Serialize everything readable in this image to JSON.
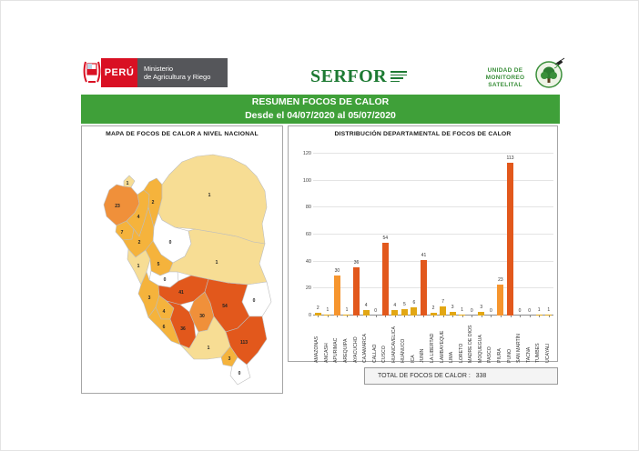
{
  "header": {
    "country_label": "PERÚ",
    "ministry_line1": "Ministerio",
    "ministry_line2": "de Agricultura y Riego",
    "serfor_logo": "SERFOR",
    "monitoring_unit_line1": "UNIDAD DE",
    "monitoring_unit_line2": "MONITOREO",
    "monitoring_unit_line3": "SATELITAL"
  },
  "title_bar": {
    "line1": "RESUMEN FOCOS DE CALOR",
    "line2": "Desde el 04/07/2020 al 05/07/2020"
  },
  "map_panel": {
    "title": "MAPA DE FOCOS DE CALOR A NIVEL NACIONAL"
  },
  "chart_panel": {
    "title": "DISTRIBUCIÓN DEPARTAMENTAL DE FOCOS DE CALOR"
  },
  "total_bar": {
    "label": "TOTAL DE FOCOS DE CALOR :",
    "value": "338"
  },
  "chart_data": {
    "type": "bar",
    "title": "DISTRIBUCIÓN DEPARTAMENTAL DE FOCOS DE CALOR",
    "categories": [
      "AMAZONAS",
      "ANCASH",
      "APURIMAC",
      "AREQUIPA",
      "AYACUCHO",
      "CAJAMARCA",
      "CALLAO",
      "CUSCO",
      "HUANCAVELICA",
      "HUÁNUCO",
      "ICA",
      "JUNÍN",
      "LA LIBERTAD",
      "LAMBAYEQUE",
      "LIMA",
      "LORETO",
      "MADRE DE DIOS",
      "MOQUEGUA",
      "PASCO",
      "PIURA",
      "PUNO",
      "SAN MARTÍN",
      "TACNA",
      "TUMBES",
      "UCAYALI"
    ],
    "values": [
      2,
      1,
      30,
      1,
      36,
      4,
      0,
      54,
      4,
      5,
      6,
      41,
      2,
      7,
      3,
      1,
      0,
      3,
      0,
      23,
      113,
      0,
      0,
      1,
      1
    ],
    "xlabel": "",
    "ylabel": "",
    "ylim": [
      0,
      120
    ],
    "yticks": [
      0,
      20,
      40,
      60,
      80,
      100,
      120
    ],
    "grid": true,
    "legend": false,
    "total": 338
  },
  "colors": {
    "header_green": "#3fa039",
    "serfor_green": "#1d7a33",
    "unit_green": "#3a8f3a",
    "peru_red": "#d91023",
    "ministry_gray": "#55565a",
    "bar_low": "#e2a714",
    "bar_mid": "#f6952e",
    "bar_high": "#e2581c",
    "map_zero": "#ffffff",
    "map_band1": "#f7dd94",
    "map_band2": "#f5b33c",
    "map_band3": "#f0903a",
    "map_band4": "#e2581c"
  }
}
